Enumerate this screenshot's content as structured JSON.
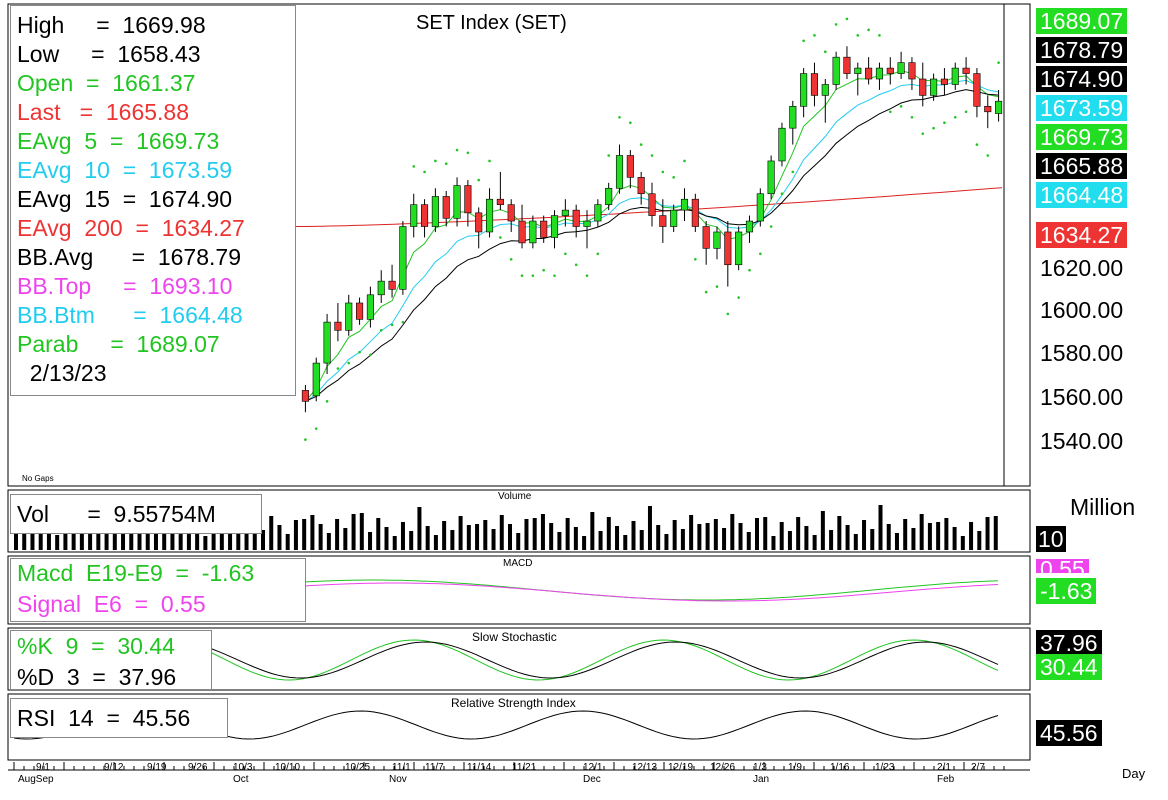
{
  "chart_title": "SET Index (SET)",
  "info_lines": [
    {
      "key": "high",
      "text": "High     =  1669.98",
      "color": "#000000"
    },
    {
      "key": "low",
      "text": "Low     =  1658.43",
      "color": "#000000"
    },
    {
      "key": "open",
      "text": "Open  =  1661.37",
      "color": "#22c422"
    },
    {
      "key": "last",
      "text": "Last   =  1665.88",
      "color": "#ee3333"
    },
    {
      "key": "eavg5",
      "text": "EAvg  5  =  1669.73",
      "color": "#22c422"
    },
    {
      "key": "eavg10",
      "text": "EAvg  10  =  1673.59",
      "color": "#22ccee"
    },
    {
      "key": "eavg15",
      "text": "EAvg  15  =  1674.90",
      "color": "#000000"
    },
    {
      "key": "eavg200",
      "text": "EAvg  200  =  1634.27",
      "color": "#ee3333"
    },
    {
      "key": "bbavg",
      "text": "BB.Avg      =  1678.79",
      "color": "#000000"
    },
    {
      "key": "bbtop",
      "text": "BB.Top     =  1693.10",
      "color": "#ee44ee"
    },
    {
      "key": "bbbtm",
      "text": "BB.Btm      =  1664.48",
      "color": "#22ccee"
    },
    {
      "key": "parab",
      "text": "Parab     =  1689.07",
      "color": "#22c422"
    },
    {
      "key": "date",
      "text": "  2/13/23",
      "color": "#000000"
    }
  ],
  "price_tags": [
    {
      "text": "1689.07",
      "bg": "#22dd22",
      "fg": "#ffffff",
      "value": 1689.07
    },
    {
      "text": "1678.79",
      "bg": "#000000",
      "fg": "#ffffff",
      "value": 1678.79
    },
    {
      "text": "1674.90",
      "bg": "#000000",
      "fg": "#ffffff",
      "value": 1674.9
    },
    {
      "text": "1673.59",
      "bg": "#22ddee",
      "fg": "#ffffff",
      "value": 1673.59
    },
    {
      "text": "1669.73",
      "bg": "#22dd22",
      "fg": "#ffffff",
      "value": 1669.73
    },
    {
      "text": "1665.88",
      "bg": "#000000",
      "fg": "#ffffff",
      "value": 1665.88
    },
    {
      "text": "1664.48",
      "bg": "#22ddee",
      "fg": "#ffffff",
      "value": 1664.48
    },
    {
      "text": "1634.27",
      "bg": "#ee3333",
      "fg": "#ffffff",
      "value": 1634.27
    }
  ],
  "y_axis_labels": [
    "1620.00",
    "1600.00",
    "1580.00",
    "1560.00",
    "1540.00"
  ],
  "no_gaps": "No Gaps",
  "volume": {
    "title": "Volume",
    "info": "Vol      =  9.55754M",
    "unit": "Million",
    "tag": "10"
  },
  "macd": {
    "title": "MACD",
    "line1": "Macd  E19-E9  =  -1.63",
    "line2": "Signal  E6  =  0.55",
    "tag1": "0.55",
    "tag2": "-1.63"
  },
  "stoch": {
    "title": "Slow  Stochastic",
    "line1": "%K  9  =  30.44",
    "line2": "%D  3  =  37.96",
    "tag1": "37.96",
    "tag2": "30.44"
  },
  "rsi": {
    "title": "Relative  Strength  Index",
    "line1": "RSI  14  =  45.56",
    "tag": "45.56"
  },
  "x_axis": {
    "day_labels": [
      "9/1",
      "9/12",
      "9/19",
      "9/26",
      "10/3",
      "10/10",
      "10/25",
      "11/1",
      "11/7",
      "11/14",
      "11/21",
      "12/1",
      "12/13",
      "12/19",
      "12/26",
      "1/3",
      "1/9",
      "1/16",
      "1/23",
      "2/1",
      "2/7"
    ],
    "month_labels": [
      "AugSep",
      "Oct",
      "Nov",
      "Dec",
      "Jan",
      "Feb"
    ],
    "unit": "Day"
  },
  "chart_data": {
    "type": "candlestick",
    "title": "SET Index (SET)",
    "ylim": [
      1525,
      1700
    ],
    "y_ticks": [
      1620,
      1600,
      1580,
      1560,
      1540
    ],
    "candles": [
      [
        1560,
        1562,
        1552,
        1556
      ],
      [
        1558,
        1572,
        1556,
        1570
      ],
      [
        1570,
        1588,
        1566,
        1585
      ],
      [
        1585,
        1592,
        1578,
        1582
      ],
      [
        1582,
        1595,
        1580,
        1592
      ],
      [
        1592,
        1594,
        1584,
        1586
      ],
      [
        1586,
        1598,
        1583,
        1595
      ],
      [
        1595,
        1604,
        1592,
        1600
      ],
      [
        1600,
        1606,
        1594,
        1597
      ],
      [
        1597,
        1622,
        1595,
        1620
      ],
      [
        1620,
        1632,
        1616,
        1628
      ],
      [
        1628,
        1630,
        1616,
        1620
      ],
      [
        1620,
        1634,
        1618,
        1631
      ],
      [
        1631,
        1633,
        1620,
        1623
      ],
      [
        1623,
        1638,
        1620,
        1635
      ],
      [
        1635,
        1637,
        1620,
        1625
      ],
      [
        1625,
        1627,
        1612,
        1618
      ],
      [
        1618,
        1634,
        1616,
        1630
      ],
      [
        1630,
        1640,
        1626,
        1628
      ],
      [
        1628,
        1630,
        1618,
        1622
      ],
      [
        1622,
        1628,
        1612,
        1614
      ],
      [
        1614,
        1624,
        1612,
        1622
      ],
      [
        1622,
        1624,
        1614,
        1616
      ],
      [
        1616,
        1626,
        1612,
        1624
      ],
      [
        1624,
        1630,
        1620,
        1626
      ],
      [
        1626,
        1628,
        1616,
        1620
      ],
      [
        1620,
        1626,
        1612,
        1622
      ],
      [
        1622,
        1630,
        1620,
        1628
      ],
      [
        1628,
        1636,
        1626,
        1634
      ],
      [
        1634,
        1650,
        1632,
        1646
      ],
      [
        1646,
        1648,
        1634,
        1638
      ],
      [
        1638,
        1640,
        1628,
        1632
      ],
      [
        1632,
        1636,
        1620,
        1624
      ],
      [
        1624,
        1630,
        1614,
        1620
      ],
      [
        1620,
        1628,
        1618,
        1626
      ],
      [
        1626,
        1634,
        1622,
        1630
      ],
      [
        1630,
        1632,
        1618,
        1620
      ],
      [
        1620,
        1622,
        1606,
        1612
      ],
      [
        1612,
        1620,
        1608,
        1618
      ],
      [
        1618,
        1622,
        1598,
        1606
      ],
      [
        1606,
        1620,
        1604,
        1618
      ],
      [
        1618,
        1624,
        1614,
        1622
      ],
      [
        1622,
        1634,
        1620,
        1632
      ],
      [
        1632,
        1646,
        1630,
        1644
      ],
      [
        1644,
        1658,
        1642,
        1656
      ],
      [
        1656,
        1666,
        1650,
        1664
      ],
      [
        1664,
        1678,
        1660,
        1676
      ],
      [
        1676,
        1680,
        1664,
        1668
      ],
      [
        1668,
        1674,
        1658,
        1672
      ],
      [
        1672,
        1684,
        1670,
        1682
      ],
      [
        1682,
        1686,
        1674,
        1676
      ],
      [
        1676,
        1680,
        1668,
        1678
      ],
      [
        1678,
        1682,
        1672,
        1674
      ],
      [
        1674,
        1680,
        1670,
        1678
      ],
      [
        1678,
        1682,
        1672,
        1676
      ],
      [
        1676,
        1684,
        1674,
        1680
      ],
      [
        1680,
        1682,
        1670,
        1674
      ],
      [
        1674,
        1680,
        1664,
        1668
      ],
      [
        1668,
        1676,
        1666,
        1674
      ],
      [
        1674,
        1678,
        1668,
        1672
      ],
      [
        1672,
        1680,
        1670,
        1678
      ],
      [
        1678,
        1682,
        1672,
        1676
      ],
      [
        1676,
        1678,
        1660,
        1664
      ],
      [
        1664,
        1668,
        1656,
        1662
      ],
      [
        1661.37,
        1669.98,
        1658.43,
        1665.88
      ]
    ],
    "ema200": {
      "start": 1620,
      "end": 1634.27
    },
    "volume_unit": "Million",
    "macd": {
      "macd_last": -1.63,
      "signal_last": 0.55
    },
    "stochastic": {
      "k_last": 30.44,
      "d_last": 37.96
    },
    "rsi": {
      "last": 45.56
    }
  }
}
